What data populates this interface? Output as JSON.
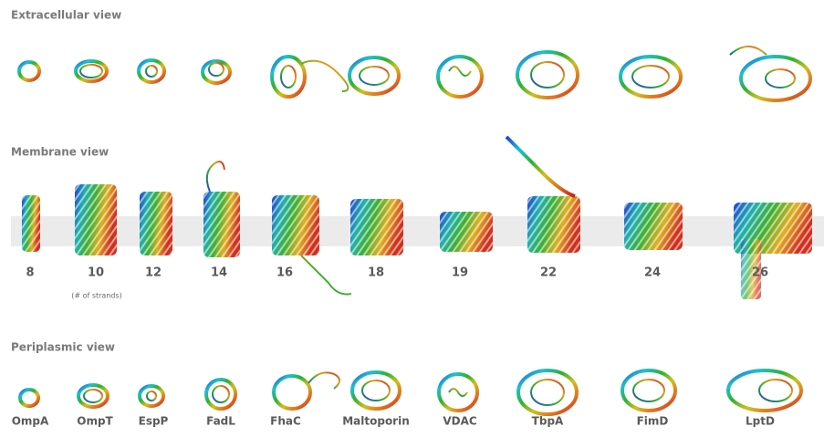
{
  "sections": [
    "Extracellular view",
    "Membrane view",
    "Periplasmic view"
  ],
  "strand_counts": [
    "8",
    "10",
    "12",
    "14",
    "16",
    "18",
    "19",
    "22",
    "24",
    "26"
  ],
  "strand_note": "(# of strands)",
  "proteins": [
    "OmpA",
    "OmpT",
    "EspP",
    "FadL",
    "FhaC",
    "Maltoporin",
    "VDAC",
    "TbpA",
    "FimD",
    "LptD"
  ]
}
